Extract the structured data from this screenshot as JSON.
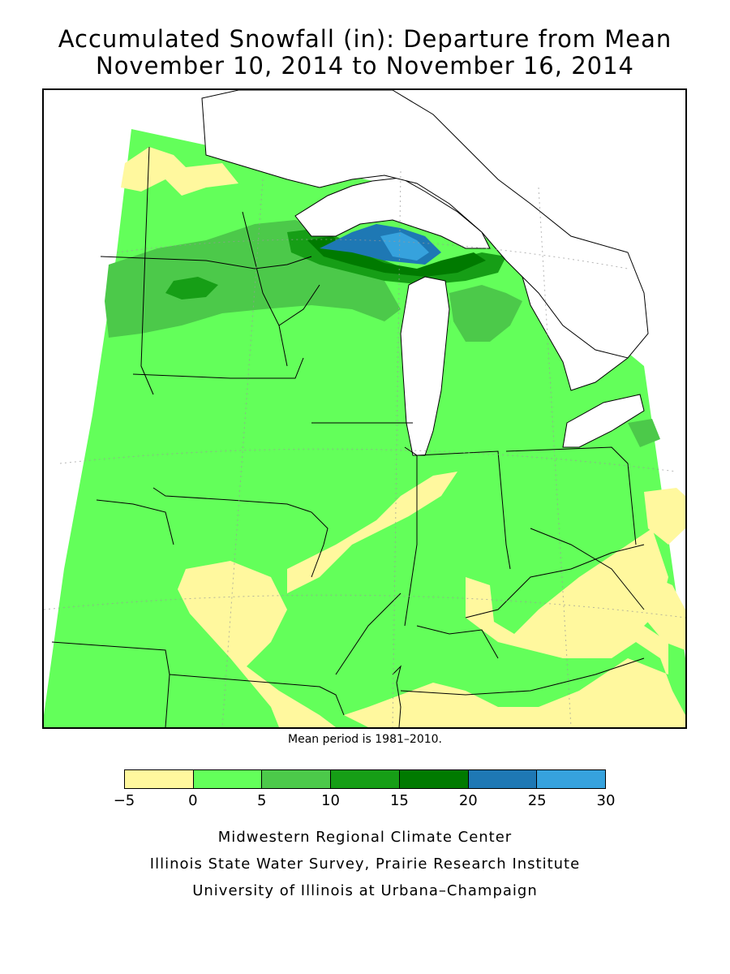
{
  "title": {
    "line1": "Accumulated Snowfall (in): Departure from Mean",
    "line2": "November 10, 2014 to November 16, 2014"
  },
  "map": {
    "region": "Upper Midwest / Great Lakes",
    "background_color": "#ffffff"
  },
  "note": "Mean period is 1981–2010.",
  "legend": {
    "ticks": [
      "−5",
      "0",
      "5",
      "10",
      "15",
      "20",
      "25",
      "30"
    ],
    "colors": [
      "#fff89e",
      "#63ff5a",
      "#4cc94a",
      "#169e16",
      "#007a00",
      "#1e78b4",
      "#36a2dd"
    ]
  },
  "credits": {
    "line1": "Midwestern Regional Climate Center",
    "line2": "Illinois State Water Survey, Prairie Research Institute",
    "line3": "University of Illinois at Urbana–Champaign"
  }
}
